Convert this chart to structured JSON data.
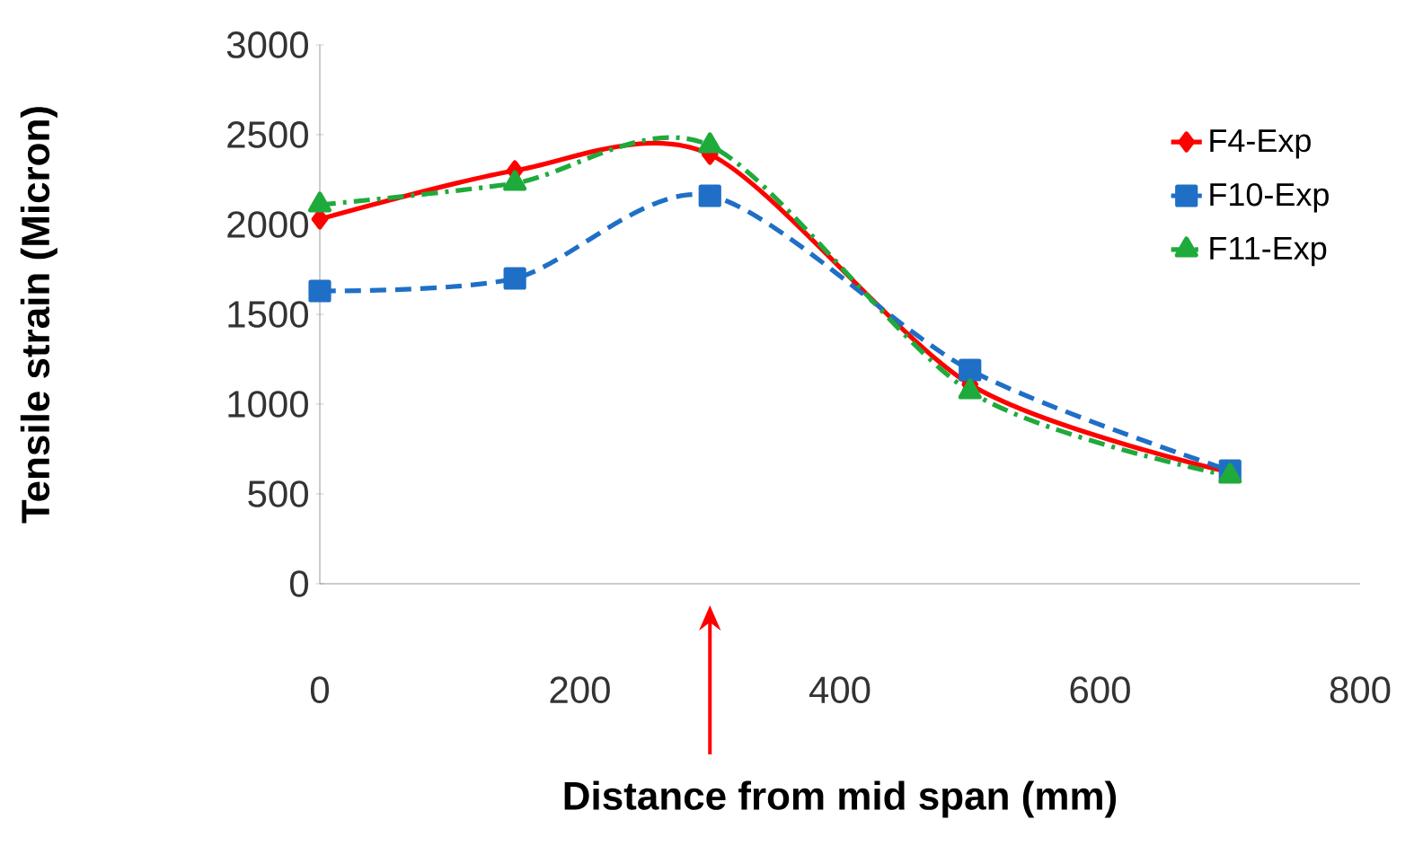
{
  "chart_data": {
    "type": "line",
    "xlabel": "Distance from mid span (mm)",
    "ylabel": "Tensile strain (Micron)",
    "x": [
      0,
      150,
      300,
      500,
      700
    ],
    "series": [
      {
        "name": "F4-Exp",
        "color": "#ff0000",
        "marker": "diamond",
        "line_style": "solid",
        "values": [
          2030,
          2300,
          2390,
          1110,
          620
        ]
      },
      {
        "name": "F10-Exp",
        "color": "#1f6fc6",
        "marker": "square",
        "line_style": "dashed",
        "values": [
          1630,
          1700,
          2160,
          1190,
          630
        ]
      },
      {
        "name": "F11-Exp",
        "color": "#1faa3c",
        "marker": "triangle",
        "line_style": "dashdot",
        "values": [
          2110,
          2230,
          2440,
          1070,
          600
        ]
      }
    ],
    "xlim": [
      0,
      800
    ],
    "xticks": [
      0,
      200,
      400,
      600,
      800
    ],
    "ylim": [
      0,
      3000
    ],
    "yticks": [
      0,
      500,
      1000,
      1500,
      2000,
      2500,
      3000
    ],
    "grid": false,
    "legend": "right"
  }
}
